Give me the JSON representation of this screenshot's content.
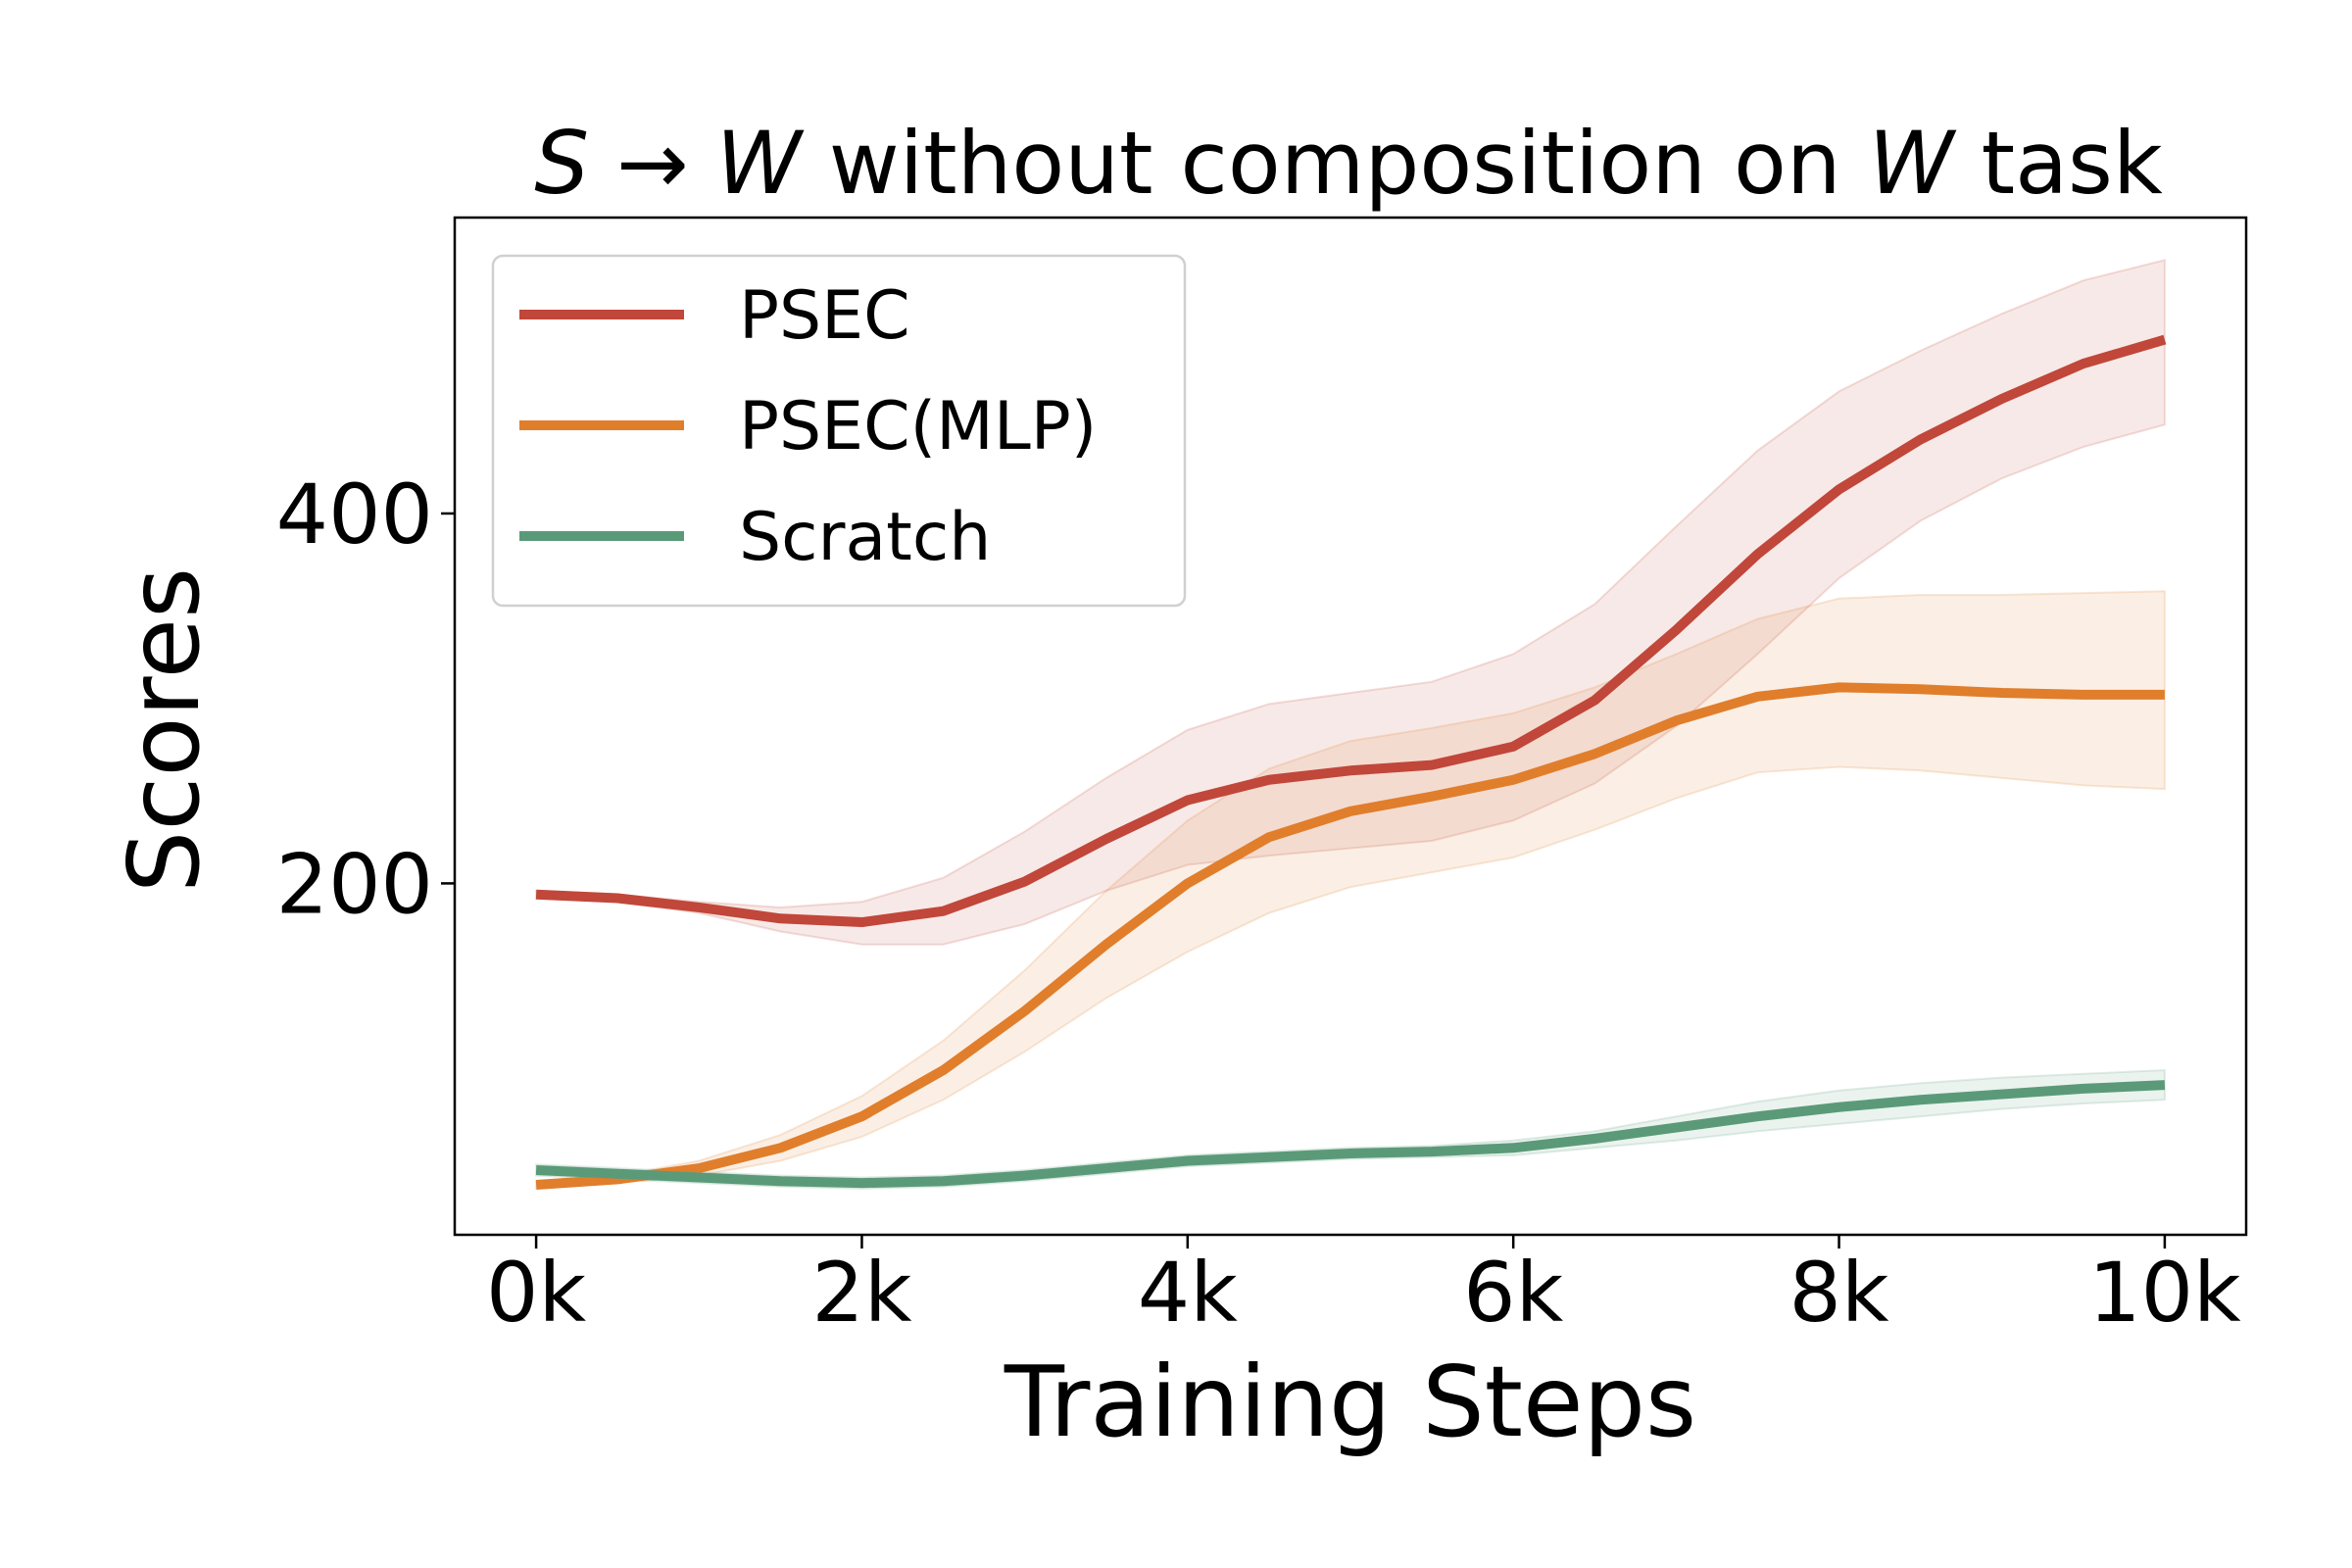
{
  "chart_data": {
    "type": "line",
    "title": {
      "parts": [
        {
          "text": "S",
          "italic": true
        },
        {
          "text": " → ",
          "italic": false
        },
        {
          "text": "W",
          "italic": true
        },
        {
          "text": " without composition on ",
          "italic": false
        },
        {
          "text": "W",
          "italic": true
        },
        {
          "text": " task",
          "italic": false
        }
      ]
    },
    "xlabel": "Training Steps",
    "ylabel": "Scores",
    "xlim": [
      -500,
      10500
    ],
    "ylim": [
      10,
      560
    ],
    "x_ticks": [
      0,
      2000,
      4000,
      6000,
      8000,
      10000
    ],
    "x_tick_labels": [
      "0k",
      "2k",
      "4k",
      "6k",
      "8k",
      "10k"
    ],
    "y_ticks": [
      200,
      400
    ],
    "y_tick_labels": [
      "200",
      "400"
    ],
    "grid": false,
    "legend": {
      "position": "upper-left"
    },
    "x": [
      0,
      500,
      1000,
      1500,
      2000,
      2500,
      3000,
      3500,
      4000,
      4500,
      5000,
      5500,
      6000,
      6500,
      7000,
      7500,
      8000,
      8500,
      9000,
      9500,
      10000
    ],
    "series": [
      {
        "name": "PSEC",
        "color": "#c0473a",
        "values": [
          194,
          192,
          187,
          181,
          179,
          185,
          201,
          224,
          245,
          256,
          261,
          264,
          274,
          299,
          337,
          378,
          413,
          440,
          462,
          481,
          494
        ],
        "upper": [
          196,
          194,
          190,
          187,
          190,
          203,
          228,
          257,
          283,
          297,
          303,
          309,
          324,
          351,
          393,
          434,
          466,
          488,
          508,
          526,
          537
        ],
        "lower": [
          192,
          190,
          184,
          174,
          167,
          167,
          178,
          196,
          210,
          215,
          219,
          223,
          234,
          254,
          285,
          324,
          365,
          396,
          419,
          436,
          448
        ]
      },
      {
        "name": "PSEC(MLP)",
        "color": "#e07e2c",
        "values": [
          37,
          40,
          46,
          57,
          74,
          99,
          131,
          167,
          200,
          225,
          239,
          247,
          256,
          270,
          288,
          301,
          306,
          305,
          303,
          302,
          302
        ],
        "upper": [
          39,
          42,
          50,
          64,
          85,
          115,
          153,
          196,
          234,
          262,
          277,
          284,
          292,
          306,
          324,
          343,
          354,
          356,
          356,
          357,
          358
        ],
        "lower": [
          35,
          38,
          42,
          50,
          63,
          83,
          109,
          138,
          163,
          184,
          198,
          206,
          214,
          229,
          246,
          260,
          263,
          261,
          257,
          253,
          251
        ]
      },
      {
        "name": "Scratch",
        "color": "#5b9a78",
        "values": [
          45,
          43,
          41,
          39,
          38,
          39,
          42,
          46,
          50,
          52,
          54,
          55,
          57,
          62,
          68,
          74,
          79,
          83,
          86,
          89,
          91
        ],
        "upper": [
          48,
          46,
          44,
          42,
          41,
          42,
          45,
          49,
          53,
          55,
          57,
          58,
          61,
          66,
          74,
          82,
          88,
          92,
          95,
          97,
          99
        ],
        "lower": [
          42,
          40,
          38,
          36,
          35,
          36,
          39,
          43,
          47,
          49,
          51,
          52,
          53,
          57,
          61,
          66,
          70,
          74,
          78,
          81,
          83
        ]
      }
    ]
  }
}
